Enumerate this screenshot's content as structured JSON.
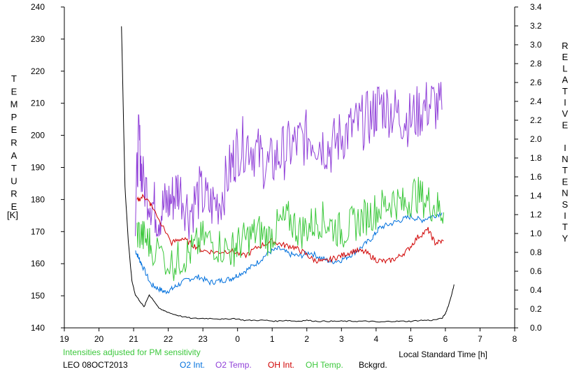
{
  "chart_data": {
    "type": "line",
    "left_axis_label": "TEMPERATURE",
    "left_axis_unit": "[K]",
    "right_axis_label": "RELATIVE INTENSITY",
    "xlabel": "Local Standard Time [h]",
    "xlim": [
      19,
      32
    ],
    "ylim_left": [
      140,
      240
    ],
    "ylim_right": [
      0,
      3.4
    ],
    "x_ticks": [
      "19",
      "20",
      "21",
      "22",
      "23",
      "0",
      "1",
      "2",
      "3",
      "4",
      "5",
      "6",
      "7",
      "8"
    ],
    "left_ticks": [
      "140",
      "150",
      "160",
      "170",
      "180",
      "190",
      "200",
      "210",
      "220",
      "230",
      "240"
    ],
    "right_ticks": [
      "0.0",
      "0.2",
      "0.4",
      "0.6",
      "0.8",
      "1.0",
      "1.2",
      "1.4",
      "1.6",
      "1.8",
      "2.0",
      "2.2",
      "2.4",
      "2.6",
      "2.8",
      "3.0",
      "3.2",
      "3.4"
    ],
    "note": "Intensities adjusted for PM sensitivity",
    "station_label": "LEO 08OCT2013",
    "grid": false,
    "legend_position": "bottom",
    "series": [
      {
        "name": "O2 Int.",
        "color": "#0070dd",
        "axis": "right",
        "x": [
          21.05,
          21.15,
          21.25,
          21.5,
          21.7,
          21.9,
          22.1,
          22.3,
          22.6,
          22.9,
          23.2,
          23.5,
          23.8,
          24.0,
          24.3,
          24.6,
          24.9,
          25.2,
          25.5,
          25.8,
          26.1,
          26.4,
          26.7,
          27.0,
          27.3,
          27.6,
          27.9,
          28.1,
          28.4,
          28.7,
          29.0,
          29.3,
          29.6,
          29.9
        ],
        "values": [
          0.82,
          0.74,
          0.66,
          0.46,
          0.42,
          0.38,
          0.41,
          0.46,
          0.52,
          0.54,
          0.48,
          0.5,
          0.52,
          0.56,
          0.62,
          0.7,
          0.8,
          0.84,
          0.78,
          0.76,
          0.8,
          0.74,
          0.7,
          0.72,
          0.78,
          0.86,
          0.96,
          1.06,
          1.1,
          1.14,
          1.18,
          1.14,
          1.18,
          1.22
        ]
      },
      {
        "name": "O2 Temp.",
        "color": "#9040d8",
        "axis": "left",
        "x": [
          21.05,
          21.15,
          21.25,
          21.5,
          21.7,
          21.9,
          22.1,
          22.3,
          22.6,
          22.9,
          23.2,
          23.5,
          23.8,
          24.0,
          24.3,
          24.6,
          24.9,
          25.2,
          25.5,
          25.8,
          26.1,
          26.4,
          26.7,
          27.0,
          27.3,
          27.6,
          27.9,
          28.1,
          28.4,
          28.7,
          29.0,
          29.3,
          29.6,
          29.9
        ],
        "values": [
          176,
          200,
          186,
          180,
          175,
          178,
          180,
          184,
          176,
          182,
          178,
          180,
          190,
          196,
          198,
          194,
          190,
          194,
          196,
          198,
          200,
          198,
          196,
          200,
          202,
          204,
          206,
          210,
          208,
          206,
          205,
          208,
          210,
          208
        ]
      },
      {
        "name": "OH Int.",
        "color": "#d00000",
        "axis": "right",
        "x": [
          21.1,
          21.3,
          21.5,
          22.1,
          22.4,
          22.7,
          23.0,
          23.4,
          23.8,
          24.2,
          24.6,
          25.0,
          25.3,
          25.6,
          25.9,
          26.2,
          26.5,
          26.8,
          27.1,
          27.4,
          27.7,
          28.0,
          28.3,
          28.6,
          28.9,
          29.2,
          29.5,
          29.7,
          29.95
        ],
        "values": [
          1.35,
          1.4,
          1.3,
          0.9,
          0.95,
          0.88,
          0.82,
          0.8,
          0.82,
          0.76,
          0.86,
          0.92,
          0.88,
          0.86,
          0.8,
          0.72,
          0.7,
          0.74,
          0.78,
          0.82,
          0.8,
          0.72,
          0.7,
          0.74,
          0.82,
          0.96,
          1.04,
          0.9,
          0.92
        ]
      },
      {
        "name": "OH Temp.",
        "color": "#3cc83c",
        "axis": "left",
        "x": [
          21.1,
          21.3,
          21.5,
          22.1,
          22.4,
          22.7,
          23.0,
          23.4,
          23.8,
          24.0,
          24.3,
          24.6,
          24.9,
          25.2,
          25.5,
          25.8,
          26.1,
          26.4,
          26.7,
          27.0,
          27.3,
          27.6,
          27.9,
          28.2,
          28.5,
          28.8,
          29.1,
          29.4,
          29.7,
          29.95
        ],
        "values": [
          170,
          168,
          166,
          160,
          162,
          164,
          168,
          166,
          164,
          166,
          168,
          170,
          168,
          172,
          174,
          170,
          172,
          174,
          172,
          170,
          172,
          174,
          176,
          178,
          180,
          178,
          182,
          180,
          178,
          176
        ]
      },
      {
        "name": "Bckgrd.",
        "color": "#000000",
        "axis": "right",
        "x": [
          20.65,
          20.75,
          20.85,
          20.95,
          21.05,
          21.15,
          21.3,
          21.45,
          21.6,
          21.75,
          21.9,
          22.1,
          22.4,
          22.7,
          23.0,
          23.3,
          23.6,
          23.9,
          24.2,
          24.5,
          24.8,
          25.1,
          25.4,
          25.7,
          26.0,
          26.3,
          26.6,
          26.9,
          27.2,
          27.5,
          27.8,
          28.1,
          28.4,
          28.7,
          29.0,
          29.3,
          29.6,
          29.9,
          30.0,
          30.1,
          30.2,
          30.25
        ],
        "values": [
          3.2,
          1.5,
          0.9,
          0.5,
          0.35,
          0.3,
          0.22,
          0.35,
          0.28,
          0.2,
          0.18,
          0.15,
          0.12,
          0.1,
          0.1,
          0.1,
          0.09,
          0.1,
          0.08,
          0.08,
          0.08,
          0.07,
          0.08,
          0.07,
          0.08,
          0.07,
          0.07,
          0.07,
          0.07,
          0.07,
          0.07,
          0.06,
          0.07,
          0.07,
          0.07,
          0.08,
          0.08,
          0.1,
          0.15,
          0.25,
          0.38,
          0.46
        ]
      }
    ]
  }
}
